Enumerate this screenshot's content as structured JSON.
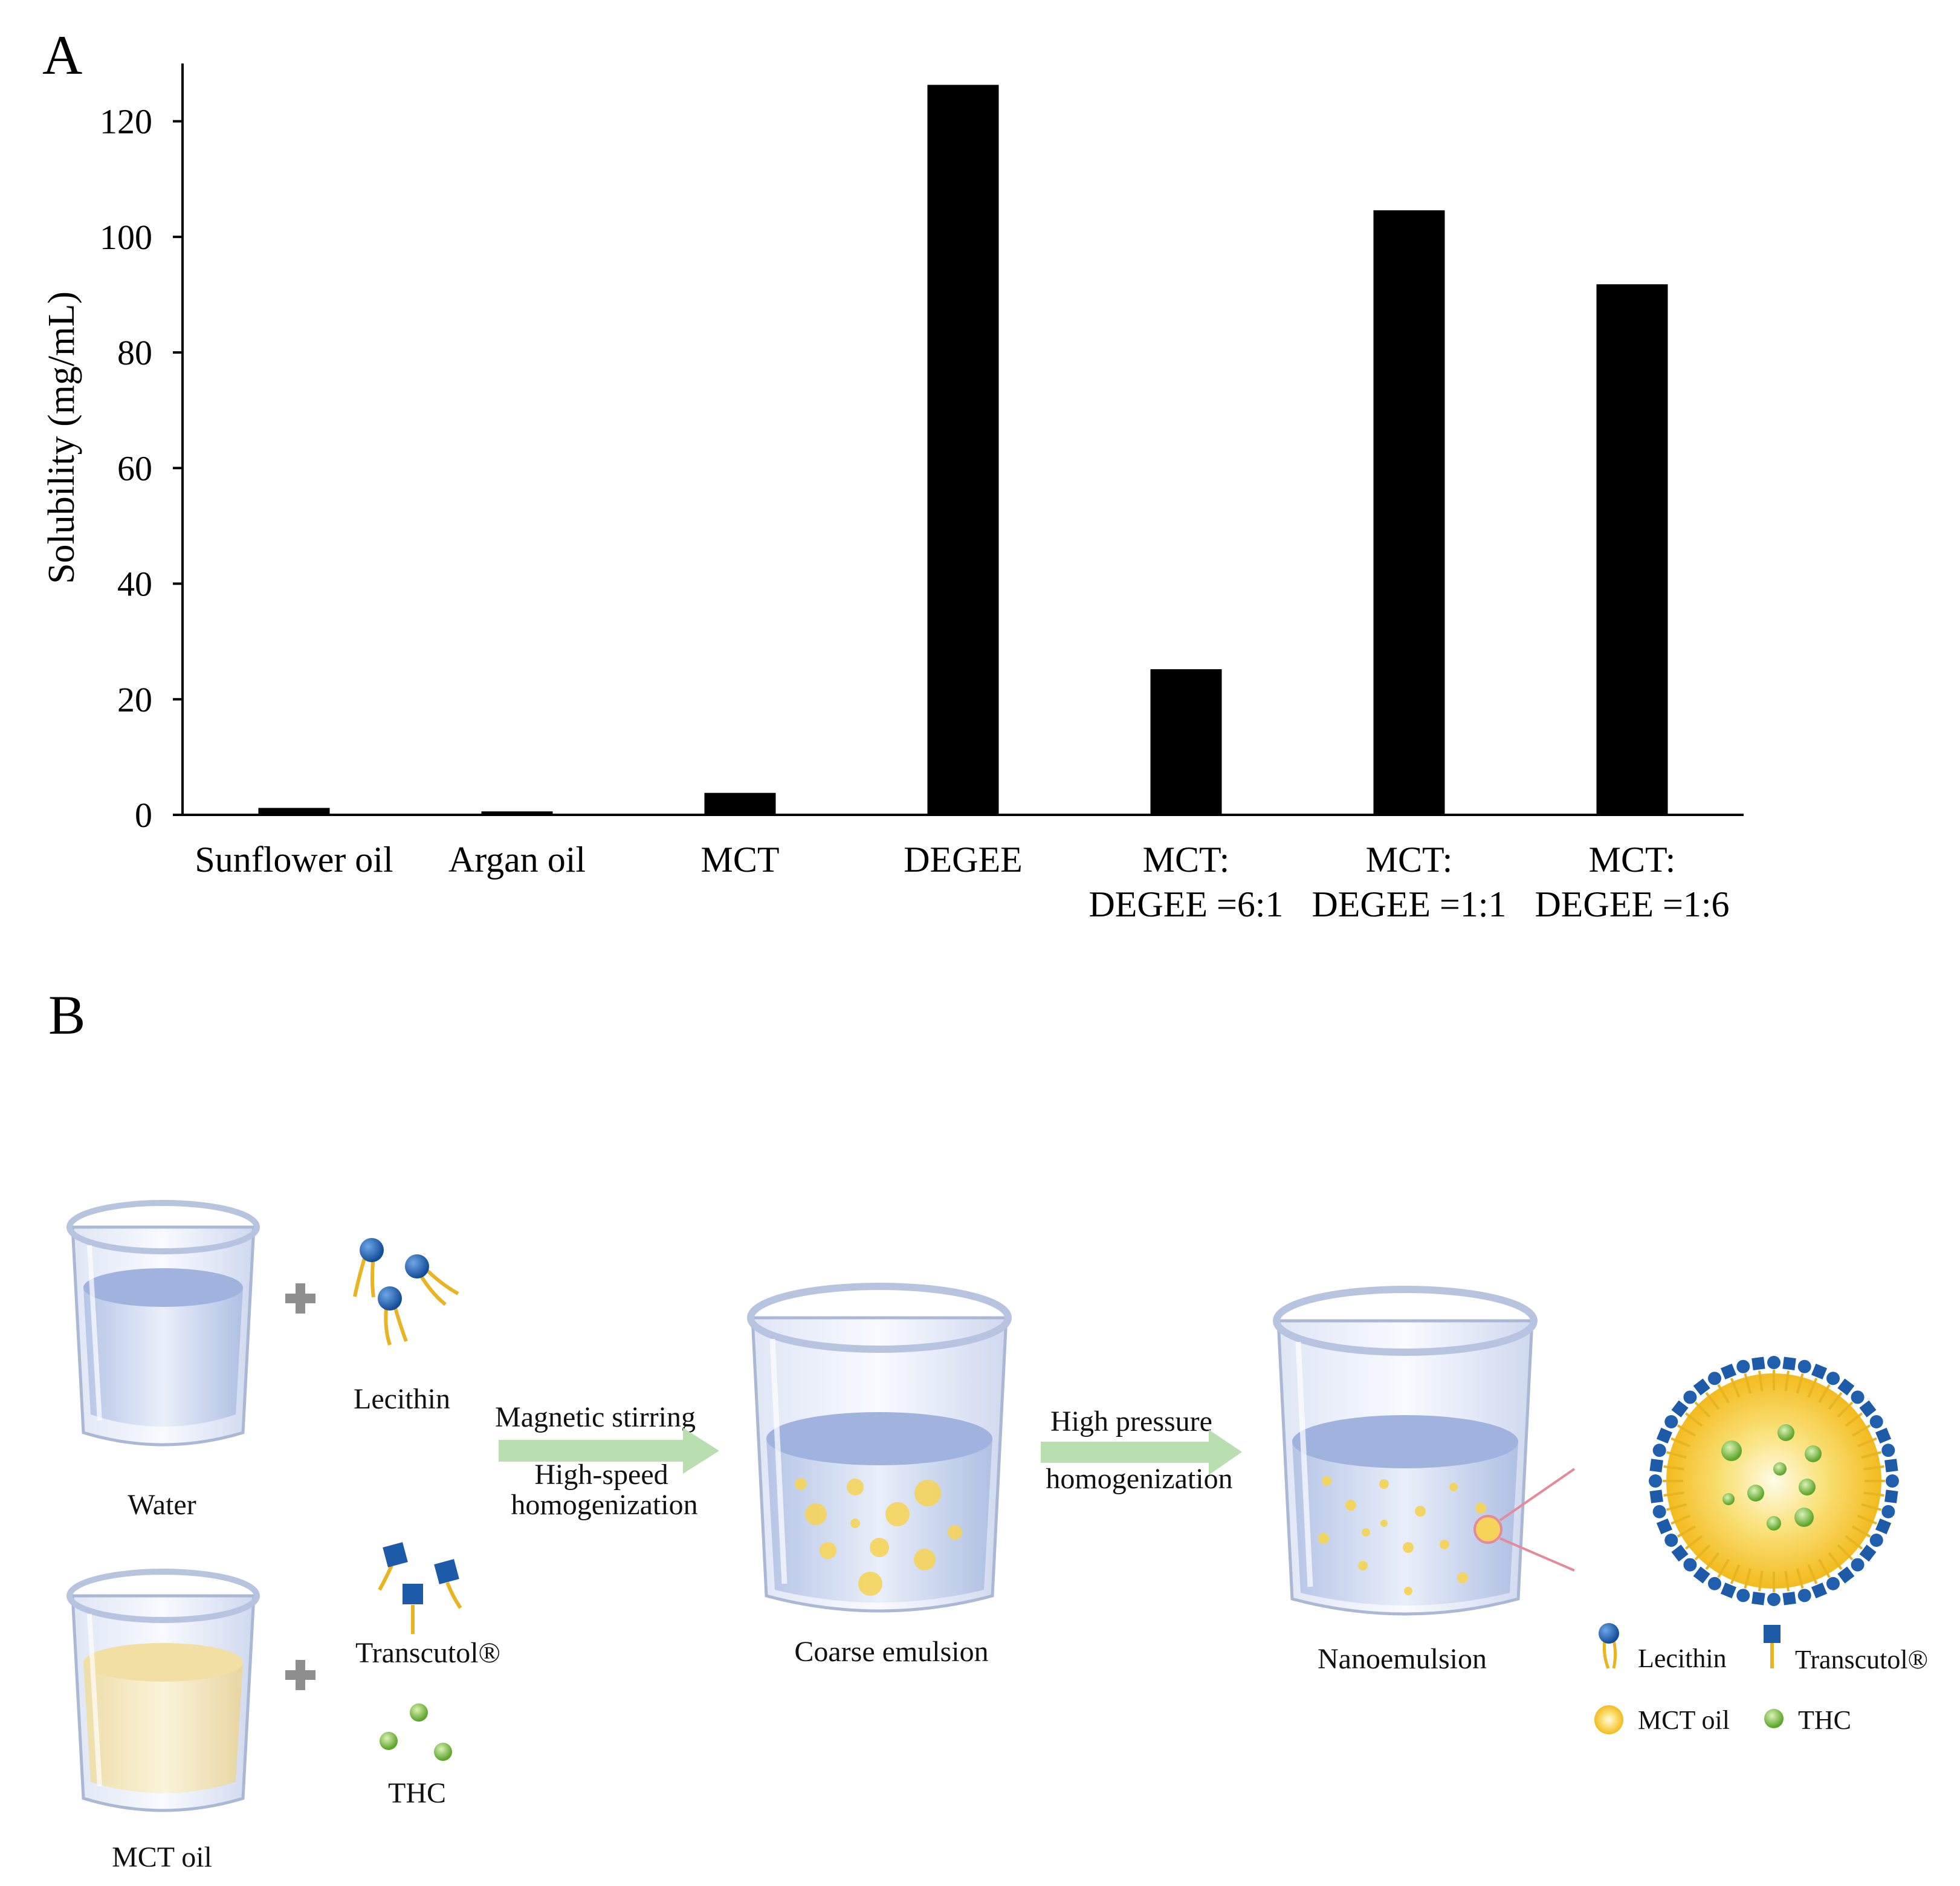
{
  "panel_a_label": "A",
  "panel_b_label": "B",
  "chart_data": {
    "type": "bar",
    "title": "",
    "xlabel": "",
    "ylabel": "Solubility (mg/mL)",
    "ylim": [
      0,
      130
    ],
    "yticks": [
      0,
      20,
      40,
      60,
      80,
      100,
      120
    ],
    "grid": false,
    "categories": [
      [
        "Sunflower oil"
      ],
      [
        "Argan oil"
      ],
      [
        "MCT"
      ],
      [
        "DEGEE"
      ],
      [
        "MCT:",
        "DEGEE =6:1"
      ],
      [
        "MCT:",
        "DEGEE =1:1"
      ],
      [
        "MCT:",
        "DEGEE =1:6"
      ]
    ],
    "values": [
      1.2,
      0.6,
      3.8,
      126.3,
      25.2,
      104.6,
      91.8
    ],
    "bar_color": "#000000"
  },
  "diagram": {
    "ingredients": {
      "water": "Water",
      "mct_oil": "MCT oil",
      "lecithin": "Lecithin",
      "transcutol": "Transcutol®",
      "thc": "THC"
    },
    "step1": {
      "line1": "Magnetic stirring",
      "line2": "High-speed",
      "line3": "homogenization"
    },
    "step2": {
      "line1": "High pressure",
      "line2": "homogenization"
    },
    "coarse_emulsion": "Coarse emulsion",
    "nanoemulsion": "Nanoemulsion",
    "legend": {
      "lecithin": "Lecithin",
      "transcutol": "Transcutol®",
      "mct_oil": "MCT oil",
      "thc": "THC"
    },
    "colors": {
      "lecithin_head": "#1f5fae",
      "tail": "#e8b422",
      "transcutol_head": "#1d5aa8",
      "mct_droplet": "#f6d45a",
      "thc": "#7cc544",
      "arrow": "#b9deb0",
      "water": "#c5d3ee",
      "oil": "#f3e3a8",
      "zoom_line": "#e58a9a"
    }
  }
}
